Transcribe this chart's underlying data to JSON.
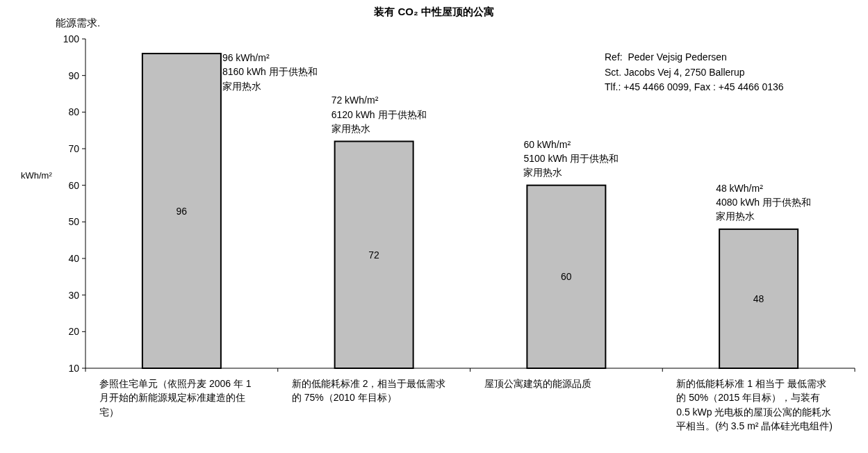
{
  "chart_data": {
    "type": "bar",
    "title": "装有 CO₂ 中性屋顶的公寓",
    "subtitle": "能源需求.",
    "ylabel": "kWh/m²",
    "categories": [
      "参照住宅单元（依照丹麦 2006 年 1 月开始的新能源规定标准建造的住宅）",
      "新的低能耗标准 2，相当于最低需求的 75%（2010 年目标）",
      "屋顶公寓建筑的能源品质",
      "新的低能耗标准 1 相当于 最低需求的 50%（2015 年目标），与装有 0.5 kWp 光电板的屋顶公寓的能耗水平相当。(约 3.5 m² 晶体硅光电组件)"
    ],
    "values": [
      96,
      72,
      60,
      48
    ],
    "color": "#c0c0c0",
    "data_labels": true,
    "grid": false,
    "ylim": [
      10,
      100
    ],
    "yticks": [
      10,
      20,
      30,
      40,
      50,
      60,
      70,
      80,
      90,
      100
    ],
    "annotations": [
      "96 kWh/m²\n8160 kWh 用于供热和家用热水",
      "72 kWh/m²\n6120 kWh 用于供热和家用热水",
      "60 kWh/m²\n5100 kWh 用于供热和家用热水",
      "48 kWh/m²\n4080 kWh 用于供热和家用热水",
      "Ref:  Peder Vejsig Pedersen\nSct. Jacobs Vej 4, 2750 Ballerup\nTlf.: +45 4466 0099, Fax : +45 4466 0136"
    ]
  }
}
